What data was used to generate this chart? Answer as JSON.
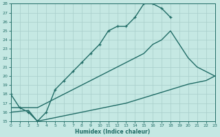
{
  "xlabel": "Humidex (Indice chaleur)",
  "xlim": [
    0,
    23
  ],
  "ylim": [
    15,
    28
  ],
  "yticks": [
    15,
    16,
    17,
    18,
    19,
    20,
    21,
    22,
    23,
    24,
    25,
    26,
    27,
    28
  ],
  "xticks": [
    0,
    1,
    2,
    3,
    4,
    5,
    6,
    7,
    8,
    9,
    10,
    11,
    12,
    13,
    14,
    15,
    16,
    17,
    18,
    19,
    20,
    21,
    22,
    23
  ],
  "bg_color": "#c5e8e3",
  "line_color": "#1f6b65",
  "grid_color": "#a8ceca",
  "curve1_x": [
    0,
    1,
    2,
    3,
    4,
    5,
    6,
    7,
    8,
    9,
    10,
    11,
    12,
    13,
    14,
    15,
    16,
    17,
    18
  ],
  "curve1_y": [
    18.0,
    16.5,
    16.0,
    15.0,
    16.0,
    18.5,
    19.5,
    20.5,
    21.5,
    22.5,
    23.5,
    25.0,
    25.5,
    25.5,
    26.5,
    28.0,
    28.0,
    27.5,
    26.5
  ],
  "curve2_x": [
    0,
    1,
    2,
    3,
    4,
    5,
    6,
    7,
    8,
    9,
    10,
    11,
    12,
    13,
    14,
    15,
    16,
    17,
    18,
    20,
    21,
    23
  ],
  "curve2_y": [
    16.5,
    16.5,
    16.5,
    16.5,
    17.0,
    17.5,
    18.0,
    18.5,
    19.0,
    19.5,
    20.0,
    20.5,
    21.0,
    21.5,
    22.0,
    22.5,
    23.5,
    24.0,
    25.0,
    22.0,
    21.0,
    20.0
  ],
  "curve3_x": [
    0,
    1,
    2,
    3,
    4,
    5,
    6,
    7,
    8,
    9,
    10,
    11,
    12,
    13,
    14,
    15,
    16,
    17,
    18,
    19,
    20,
    21,
    22,
    23
  ],
  "curve3_y": [
    16.0,
    16.1,
    16.2,
    15.0,
    15.2,
    15.4,
    15.6,
    15.8,
    16.0,
    16.2,
    16.4,
    16.6,
    16.8,
    17.0,
    17.3,
    17.6,
    17.9,
    18.2,
    18.5,
    18.8,
    19.1,
    19.3,
    19.5,
    20.0
  ]
}
